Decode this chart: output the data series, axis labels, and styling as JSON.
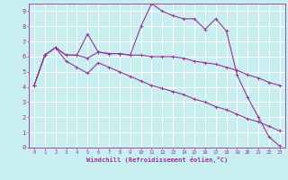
{
  "xlabel": "Windchill (Refroidissement éolien,°C)",
  "bg_color": "#c8eef0",
  "grid_color": "#ffffff",
  "line_color": "#993399",
  "xlim": [
    -0.5,
    23.5
  ],
  "ylim": [
    0,
    9.5
  ],
  "x_ticks": [
    0,
    1,
    2,
    3,
    4,
    5,
    6,
    7,
    8,
    9,
    10,
    11,
    12,
    13,
    14,
    15,
    16,
    17,
    18,
    19,
    20,
    21,
    22,
    23
  ],
  "y_ticks": [
    0,
    1,
    2,
    3,
    4,
    5,
    6,
    7,
    8,
    9
  ],
  "line1_x": [
    0,
    1,
    2,
    3,
    4,
    5,
    6,
    7,
    8,
    9,
    10,
    11,
    12,
    13,
    14,
    15,
    16,
    17,
    18,
    19,
    20,
    21,
    22,
    23
  ],
  "line1_y": [
    4.1,
    6.1,
    6.6,
    6.1,
    6.1,
    7.5,
    6.3,
    6.2,
    6.2,
    6.1,
    8.0,
    9.5,
    9.0,
    8.7,
    8.5,
    8.5,
    7.8,
    8.5,
    7.7,
    4.8,
    3.3,
    2.0,
    0.7,
    0.1
  ],
  "line2_x": [
    0,
    1,
    2,
    3,
    4,
    5,
    6,
    7,
    8,
    9,
    10,
    11,
    12,
    13,
    14,
    15,
    16,
    17,
    18,
    19,
    20,
    21,
    22,
    23
  ],
  "line2_y": [
    4.1,
    6.1,
    6.6,
    6.1,
    6.1,
    5.9,
    6.3,
    6.2,
    6.2,
    6.1,
    6.1,
    6.0,
    6.0,
    6.0,
    5.9,
    5.7,
    5.6,
    5.5,
    5.3,
    5.1,
    4.8,
    4.6,
    4.3,
    4.1
  ],
  "line3_x": [
    0,
    1,
    2,
    3,
    4,
    5,
    6,
    7,
    8,
    9,
    10,
    11,
    12,
    13,
    14,
    15,
    16,
    17,
    18,
    19,
    20,
    21,
    22,
    23
  ],
  "line3_y": [
    4.1,
    6.1,
    6.6,
    5.7,
    5.3,
    4.9,
    5.6,
    5.3,
    5.0,
    4.7,
    4.4,
    4.1,
    3.9,
    3.7,
    3.5,
    3.2,
    3.0,
    2.7,
    2.5,
    2.2,
    1.9,
    1.7,
    1.4,
    1.1
  ]
}
